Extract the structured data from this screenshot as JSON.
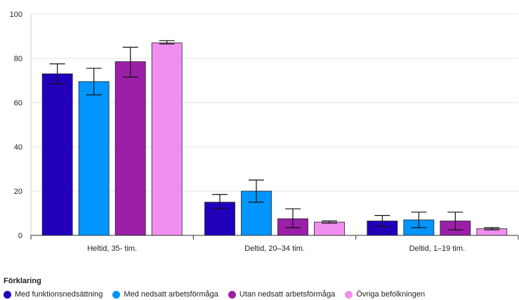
{
  "chart_data": {
    "type": "bar",
    "categories": [
      "Heltid, 35- tim.",
      "Deltid, 20–34 tim.",
      "Deltid, 1–19 tim."
    ],
    "series": [
      {
        "name": "Med funktionsnedsättning",
        "color": "#2200bb",
        "values": [
          73,
          15,
          6.5
        ],
        "err_low": [
          68.5,
          12,
          4
        ],
        "err_high": [
          77.5,
          18.5,
          9
        ]
      },
      {
        "name": "Med nedsatt arbetsförmåga",
        "color": "#0095ff",
        "values": [
          69.5,
          20,
          7
        ],
        "err_low": [
          63.5,
          15,
          3.5
        ],
        "err_high": [
          75.5,
          25,
          10.5
        ]
      },
      {
        "name": "Utan nedsatt arbetsförmåga",
        "color": "#9b1fa8",
        "values": [
          78.5,
          7.5,
          6.5
        ],
        "err_low": [
          71.5,
          3.5,
          2.5
        ],
        "err_high": [
          85,
          12,
          10.5
        ]
      },
      {
        "name": "Övriga befolkningen",
        "color": "#f08ff0",
        "values": [
          87,
          6,
          3
        ],
        "err_low": [
          86.5,
          5.5,
          2.5
        ],
        "err_high": [
          88,
          6.5,
          3.5
        ]
      }
    ],
    "y_ticks": [
      "0",
      "20",
      "40",
      "60",
      "80",
      "100"
    ],
    "ylim": [
      0,
      100
    ],
    "grid": true,
    "legend_title": "Förklaring",
    "legend_position": "bottom-left"
  }
}
